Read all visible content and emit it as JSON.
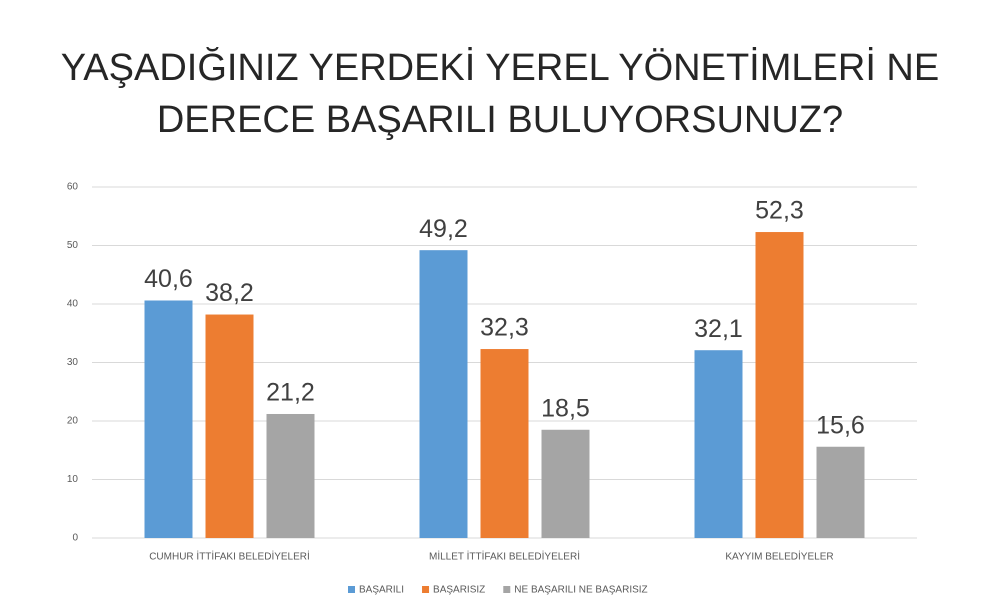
{
  "chart_data": {
    "type": "bar",
    "title": [
      "YAŞADIĞINIZ YERDEKİ YEREL YÖNETİMLERİ NE",
      "DERECE BAŞARILI BULUYORSUNUZ?"
    ],
    "categories": [
      "CUMHUR İTTİFAKI BELEDİYELERİ",
      "MİLLET İTTİFAKI BELEDİYELERİ",
      "KAYYIM BELEDİYELER"
    ],
    "series": [
      {
        "name": "BAŞARILI",
        "color": "#5b9bd5",
        "values": [
          40.6,
          49.2,
          32.1
        ],
        "value_labels": [
          "40,6",
          "49,2",
          "32,1"
        ]
      },
      {
        "name": "BAŞARISIZ",
        "color": "#ed7d31",
        "values": [
          38.2,
          32.3,
          52.3
        ],
        "value_labels": [
          "38,2",
          "32,3",
          "52,3"
        ]
      },
      {
        "name": "NE BAŞARILI NE BAŞARISIZ",
        "color": "#a5a5a5",
        "values": [
          21.2,
          18.5,
          15.6
        ],
        "value_labels": [
          "21,2",
          "18,5",
          "15,6"
        ]
      }
    ],
    "ylim": [
      0,
      60
    ],
    "yticks": [
      0,
      10,
      20,
      30,
      40,
      50,
      60
    ],
    "grid": true,
    "legend": "bottom"
  }
}
